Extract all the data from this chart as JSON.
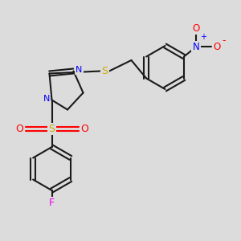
{
  "bg_color": "#dcdcdc",
  "bond_color": "#1a1a1a",
  "N_color": "#0000ff",
  "S_color": "#ccaa00",
  "O_color": "#ff0000",
  "F_color": "#ee00ee",
  "figsize": [
    3.0,
    3.0
  ],
  "dpi": 100,
  "xlim": [
    0,
    10
  ],
  "ylim": [
    0,
    10
  ]
}
